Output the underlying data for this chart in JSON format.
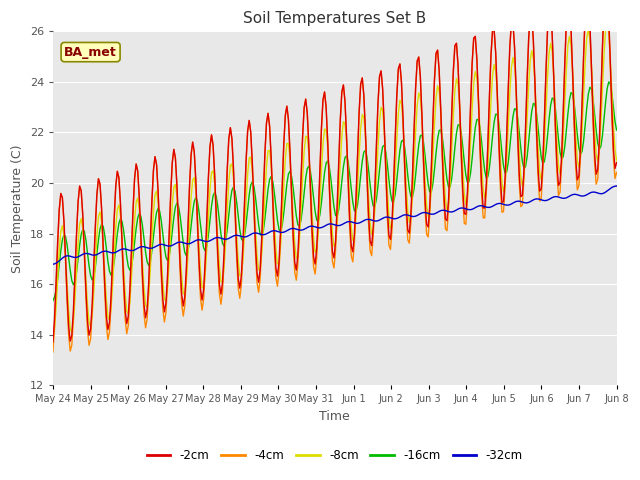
{
  "title": "Soil Temperatures Set B",
  "xlabel": "Time",
  "ylabel": "Soil Temperature (C)",
  "ylim": [
    12,
    26
  ],
  "xlim": [
    0,
    15
  ],
  "annotation": "BA_met",
  "series_labels": [
    "-2cm",
    "-4cm",
    "-8cm",
    "-16cm",
    "-32cm"
  ],
  "series_colors": [
    "#dd0000",
    "#ff8800",
    "#dddd00",
    "#00bb00",
    "#0000cc"
  ],
  "bg_color": "#e8e8e8",
  "x_tick_labels": [
    "May 24",
    "May 25",
    "May 26",
    "May 27",
    "May 28",
    "May 29",
    "May 30",
    "May 31",
    "Jun 1",
    "Jun 2",
    "Jun 3",
    "Jun 4",
    "Jun 5",
    "Jun 6",
    "Jun 7",
    "Jun 8"
  ],
  "yticks": [
    12,
    14,
    16,
    18,
    20,
    22,
    24,
    26
  ],
  "figsize": [
    6.4,
    4.8
  ],
  "dpi": 100
}
